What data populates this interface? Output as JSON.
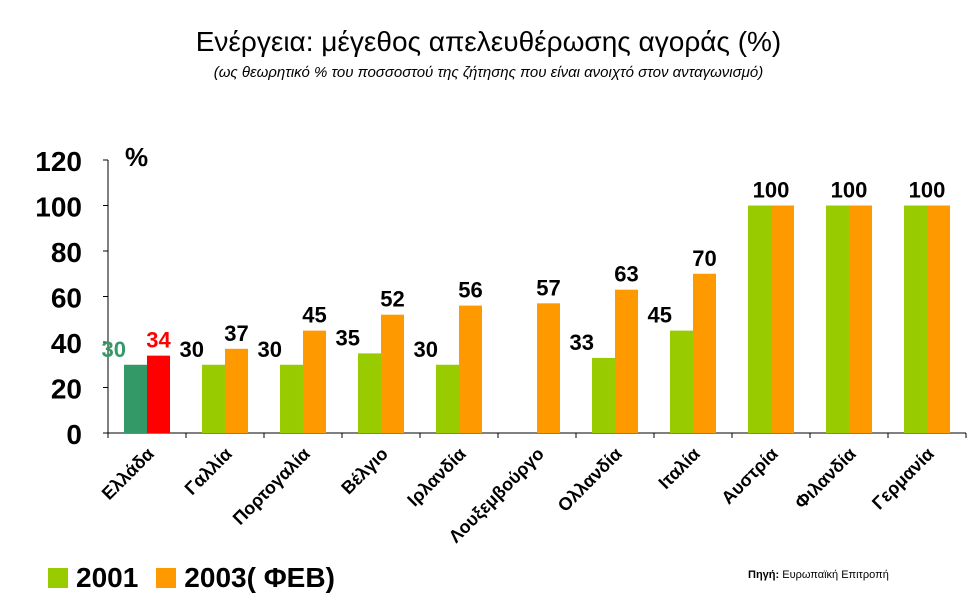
{
  "chart_data": {
    "type": "bar",
    "title": "Ενέργεια: μέγεθος απελευθέρωσης αγοράς (%)",
    "subtitle": "(ως θεωρητικό % του ποσσοστού της ζήτησης που είναι ανοιχτό στον ανταγωνισμό)",
    "ylabel": "%",
    "ylim": [
      0,
      120
    ],
    "yticks": [
      "0",
      "20",
      "40",
      "60",
      "80",
      "100",
      "120"
    ],
    "categories": [
      "Ελλάδα",
      "Γαλλία",
      "Πορτογαλία",
      "Βέλγιο",
      "Ιρλανδία",
      "Λουξεμβούργο",
      "Ολλανδία",
      "Ιταλία",
      "Αυστρία",
      "Φιλανδία",
      "Γερμανία"
    ],
    "series": [
      {
        "name": "2001",
        "values": [
          30,
          30,
          30,
          35,
          30,
          null,
          33,
          45,
          100,
          100,
          100
        ],
        "color": "#99cc00"
      },
      {
        "name": "2003( ΦΕΒ)",
        "values": [
          34,
          37,
          45,
          52,
          56,
          57,
          63,
          70,
          100,
          100,
          100
        ],
        "color": "#ff9900"
      }
    ],
    "data_labels": [
      [
        "30",
        "30",
        "30",
        "35",
        "30",
        "",
        "33",
        "45",
        "100",
        "100",
        "100"
      ],
      [
        "34",
        "37",
        "45",
        "52",
        "56",
        "57",
        "63",
        "70",
        "",
        "",
        ""
      ]
    ],
    "highlight": {
      "category_index": 0,
      "colors": [
        "#339966",
        "#ff0000"
      ]
    },
    "legend": "bottom-left",
    "grid": false
  },
  "source": {
    "label": "Πηγή:",
    "text": "Ευρωπαϊκή Επιτροπή"
  }
}
